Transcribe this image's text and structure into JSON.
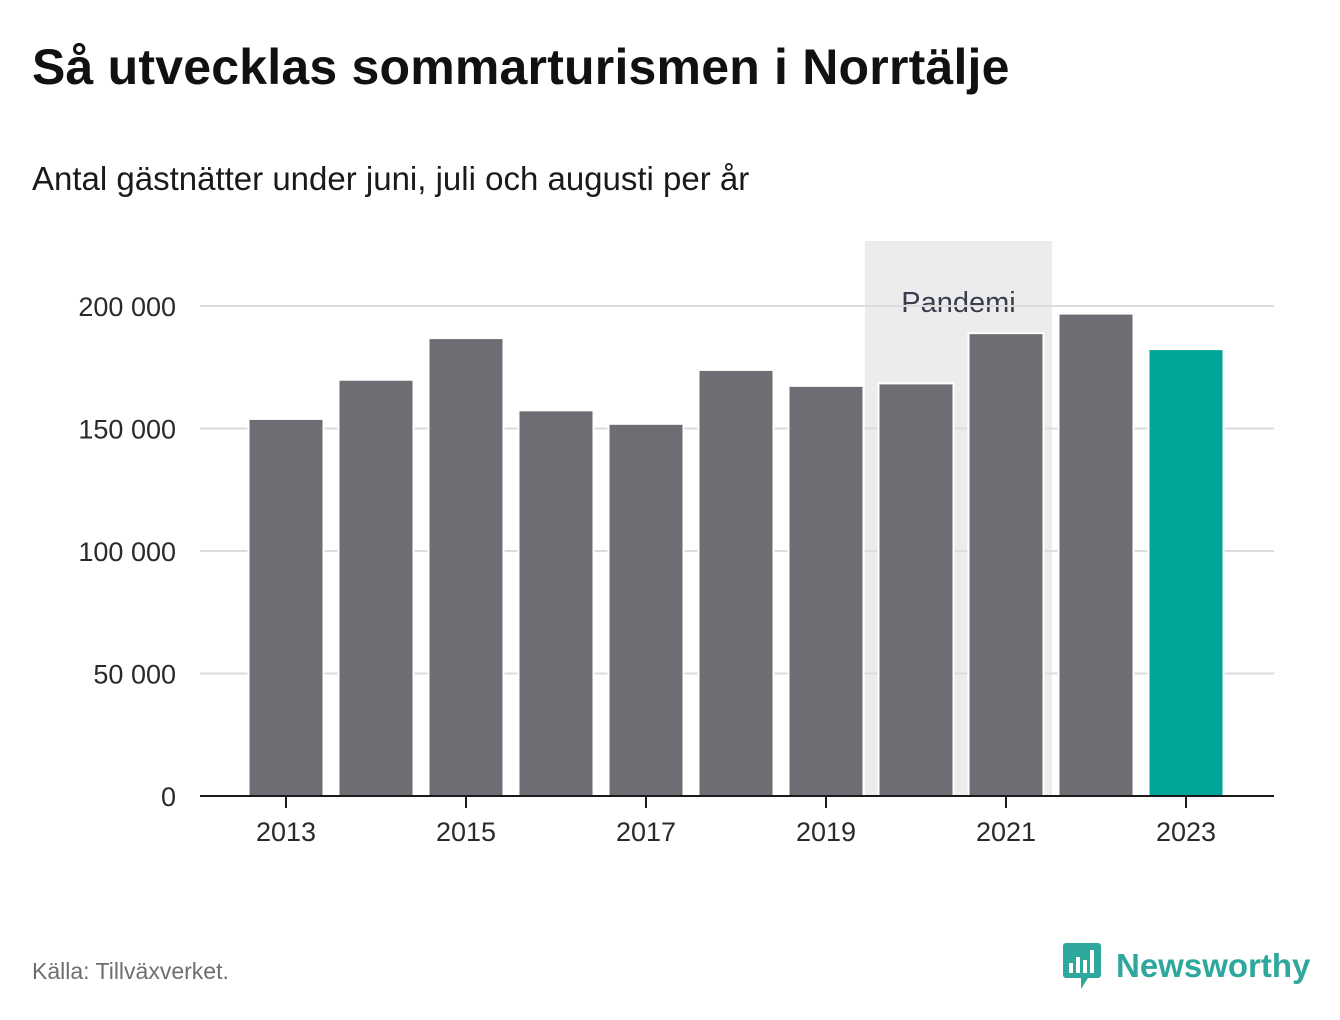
{
  "title": "Så utvecklas sommarturismen i Norrtälje",
  "subtitle": "Antal gästnätter under juni, juli och augusti per år",
  "source": "Källa: Tillväxverket.",
  "brand": "Newsworthy",
  "colors": {
    "bar": "#6e6d73",
    "highlight": "#00a59a",
    "band": "#ececec",
    "grid": "#dcdcdc",
    "axis": "#1a1a1a",
    "brand": "#2ea89c"
  },
  "chart_data": {
    "type": "bar",
    "title": "Så utvecklas sommarturismen i Norrtälje",
    "subtitle": "Antal gästnätter under juni, juli och augusti per år",
    "categories": [
      "2013",
      "2014",
      "2015",
      "2016",
      "2017",
      "2018",
      "2019",
      "2020",
      "2021",
      "2022",
      "2023"
    ],
    "values": [
      153500,
      169500,
      186500,
      157000,
      151500,
      173500,
      167000,
      168000,
      188500,
      196500,
      182000
    ],
    "highlight_index": 10,
    "x_tick_labels": [
      "2013",
      "2015",
      "2017",
      "2019",
      "2021",
      "2023"
    ],
    "y_ticks": [
      0,
      50000,
      100000,
      150000,
      200000
    ],
    "y_tick_labels": [
      "0",
      "50 000",
      "100 000",
      "150 000",
      "200 000"
    ],
    "ylim": [
      0,
      225000
    ],
    "grid": true,
    "xlabel": "",
    "ylabel": "",
    "annotation": {
      "label": "Pandemi",
      "from": "2020",
      "to": "2021"
    }
  }
}
